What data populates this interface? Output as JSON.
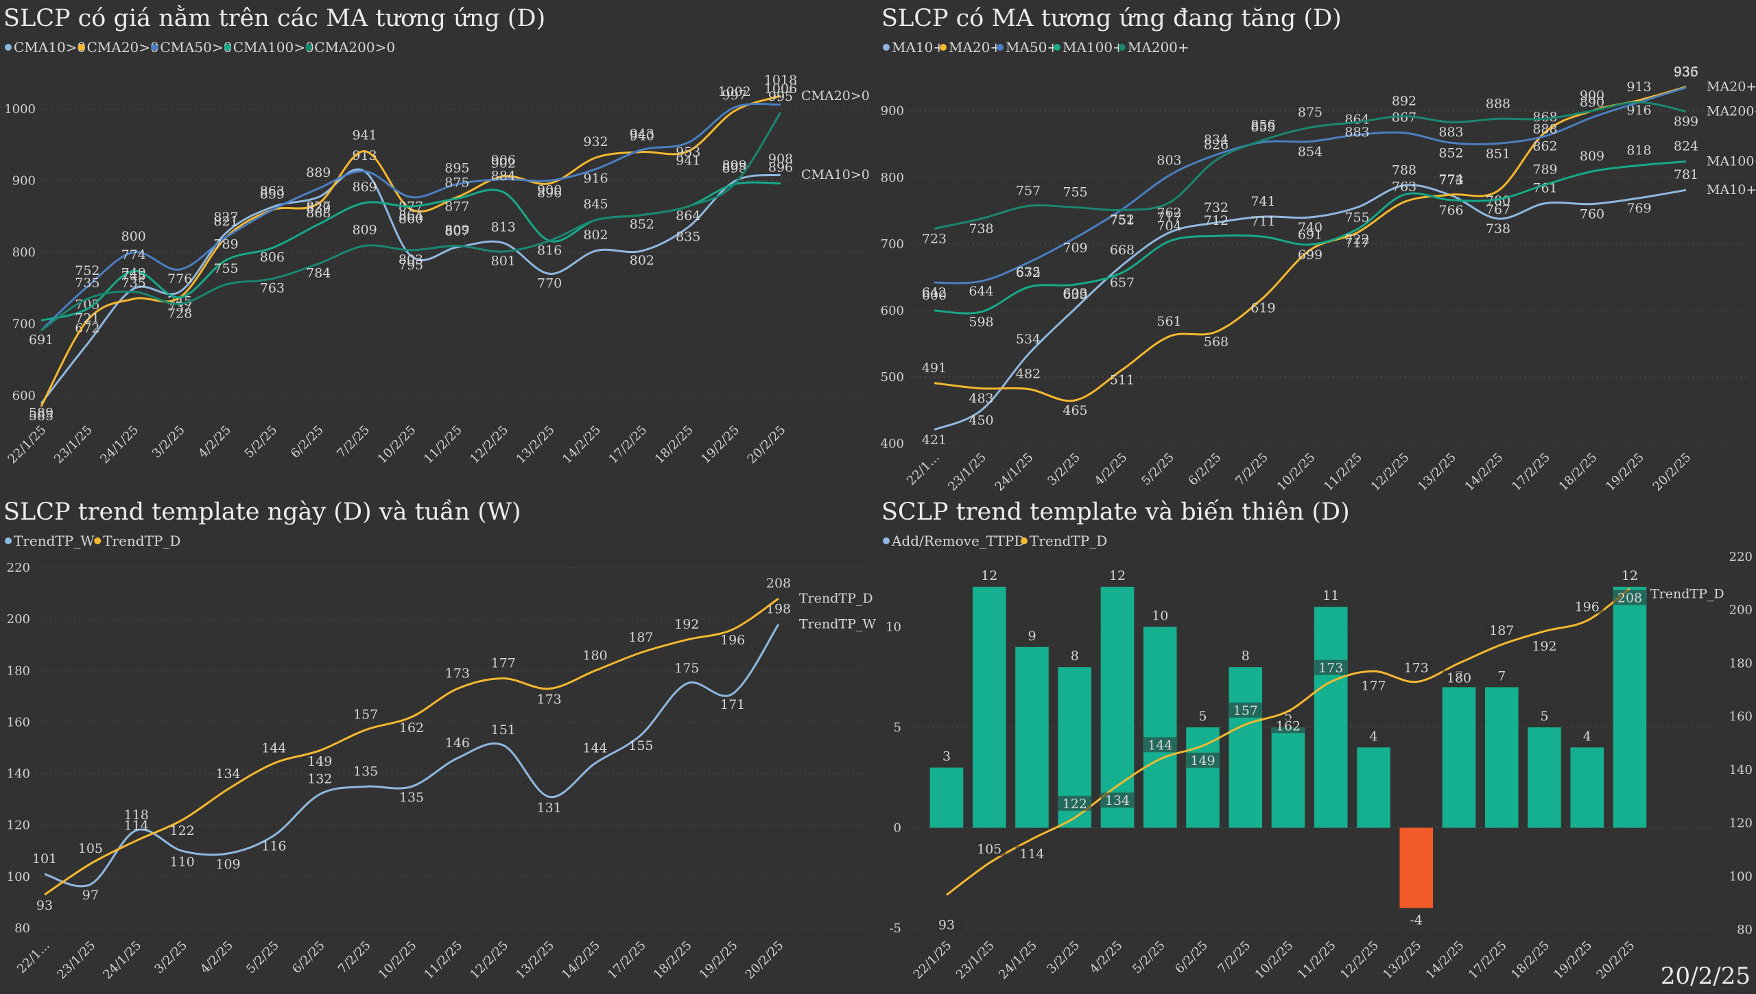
{
  "date_stamp": "20/2/25",
  "chart_data": [
    {
      "id": "tl",
      "type": "line",
      "title": "SLCP có giá nằm trên các MA tương ứng (D)",
      "categories": [
        "22/1/25",
        "23/1/25",
        "24/1/25",
        "3/2/25",
        "4/2/25",
        "5/2/25",
        "6/2/25",
        "7/2/25",
        "10/2/25",
        "11/2/25",
        "12/2/25",
        "13/2/25",
        "14/2/25",
        "17/2/25",
        "18/2/25",
        "19/2/25",
        "20/2/25"
      ],
      "ylim": [
        580,
        1020
      ],
      "yticks": [
        600,
        700,
        800,
        900,
        1000
      ],
      "grid": true,
      "legend_position": "top-left",
      "series": [
        {
          "name": "CMA10>0",
          "color": "#8fb8e0",
          "values": [
            589,
            672,
            749,
            745,
            827,
            863,
            877,
            913,
            795,
            807,
            813,
            770,
            802,
            802,
            835,
            899,
            908
          ],
          "labels": [
            589,
            672,
            749,
            745,
            827,
            863,
            877,
            913,
            795,
            807,
            813,
            770,
            802,
            802,
            835,
            899,
            908
          ],
          "end_label": "CMA10>0"
        },
        {
          "name": "CMA20>0",
          "color": "#f5b82e",
          "values": [
            585,
            705,
            735,
            737,
            821,
            859,
            868,
            941,
            860,
            877,
            906,
            896,
            932,
            940,
            941,
            997,
            1018
          ],
          "labels": [
            585,
            705,
            735,
            737,
            821,
            859,
            868,
            941,
            860,
            877,
            906,
            896,
            932,
            940,
            941,
            997,
            1018
          ],
          "end_label": "CMA20>0"
        },
        {
          "name": "CMA50>0",
          "color": "#4a7fc1",
          "values": [
            691,
            752,
            800,
            776,
            821,
            859,
            889,
            913,
            877,
            895,
            902,
            900,
            916,
            943,
            953,
            1002,
            1006
          ],
          "labels": [
            691,
            752,
            800,
            776,
            null,
            null,
            889,
            null,
            877,
            895,
            902,
            900,
            916,
            943,
            953,
            1002,
            1006
          ]
        },
        {
          "name": "CMA100>0",
          "color": "#16a98a",
          "values": [
            705,
            721,
            774,
            737,
            789,
            806,
            839,
            869,
            864,
            875,
            884,
            816,
            845,
            852,
            864,
            895,
            896
          ],
          "labels": [
            null,
            721,
            774,
            null,
            789,
            806,
            839,
            869,
            864,
            875,
            884,
            816,
            845,
            852,
            864,
            895,
            896
          ]
        },
        {
          "name": "CMA200>0",
          "color": "#198770",
          "values": [
            691,
            735,
            745,
            728,
            755,
            763,
            784,
            809,
            803,
            809,
            801,
            816,
            845,
            852,
            864,
            895,
            995
          ],
          "labels": [
            null,
            735,
            745,
            728,
            755,
            763,
            784,
            809,
            803,
            809,
            801,
            null,
            null,
            null,
            null,
            null,
            995
          ]
        }
      ]
    },
    {
      "id": "tr",
      "type": "line",
      "title": "SLCP có MA tương ứng đang tăng (D)",
      "categories": [
        "22/1...",
        "23/1/25",
        "24/1/25",
        "3/2/25",
        "4/2/25",
        "5/2/25",
        "6/2/25",
        "7/2/25",
        "10/2/25",
        "11/2/25",
        "12/2/25",
        "13/2/25",
        "14/2/25",
        "17/2/25",
        "18/2/25",
        "19/2/25",
        "20/2/25"
      ],
      "ylim": [
        395,
        945
      ],
      "yticks": [
        400,
        500,
        600,
        700,
        800,
        900
      ],
      "grid": true,
      "legend_position": "top-left",
      "series": [
        {
          "name": "MA10+",
          "color": "#8fb8e0",
          "values": [
            421,
            450,
            534,
            603,
            668,
            717,
            732,
            741,
            740,
            755,
            788,
            773,
            738,
            761,
            760,
            769,
            781
          ],
          "labels": [
            421,
            450,
            534,
            603,
            668,
            717,
            732,
            741,
            740,
            755,
            788,
            773,
            738,
            761,
            760,
            769,
            781
          ],
          "end_label": "MA10+"
        },
        {
          "name": "MA20+",
          "color": "#f5b82e",
          "values": [
            491,
            483,
            482,
            465,
            511,
            561,
            568,
            619,
            691,
            717,
            763,
            774,
            780,
            868,
            900,
            916,
            936
          ],
          "labels": [
            491,
            483,
            482,
            465,
            511,
            561,
            568,
            619,
            691,
            717,
            763,
            774,
            780,
            868,
            900,
            916,
            936
          ],
          "end_label": "MA20+"
        },
        {
          "name": "MA50+",
          "color": "#4a7fc1",
          "values": [
            642,
            644,
            672,
            709,
            752,
            803,
            834,
            853,
            854,
            864,
            867,
            852,
            851,
            862,
            890,
            913,
            935
          ],
          "labels": [
            642,
            644,
            672,
            709,
            752,
            803,
            834,
            853,
            854,
            864,
            867,
            852,
            851,
            862,
            890,
            913,
            935
          ]
        },
        {
          "name": "MA100+",
          "color": "#16a98a",
          "values": [
            600,
            598,
            635,
            639,
            657,
            704,
            712,
            711,
            699,
            722,
            774,
            766,
            767,
            789,
            809,
            818,
            824
          ],
          "labels": [
            600,
            598,
            635,
            639,
            657,
            704,
            712,
            711,
            699,
            722,
            null,
            766,
            767,
            789,
            809,
            818,
            824
          ],
          "end_label": "MA100+"
        },
        {
          "name": "MA200+",
          "color": "#198770",
          "values": [
            723,
            738,
            757,
            755,
            751,
            762,
            826,
            856,
            875,
            883,
            892,
            883,
            888,
            888,
            900,
            913,
            899
          ],
          "labels": [
            723,
            738,
            757,
            755,
            751,
            762,
            826,
            856,
            875,
            883,
            892,
            883,
            888,
            888,
            null,
            null,
            899
          ],
          "end_label": "MA200+"
        }
      ]
    },
    {
      "id": "bl",
      "type": "line",
      "title": "SLCP trend template ngày (D) và tuần (W)",
      "categories": [
        "22/1...",
        "23/1/25",
        "24/1/25",
        "3/2/25",
        "4/2/25",
        "5/2/25",
        "6/2/25",
        "7/2/25",
        "10/2/25",
        "11/2/25",
        "12/2/25",
        "13/2/25",
        "14/2/25",
        "17/2/25",
        "18/2/25",
        "19/2/25",
        "20/2/25"
      ],
      "ylim": [
        80,
        220
      ],
      "yticks": [
        80,
        100,
        120,
        140,
        160,
        180,
        200,
        220
      ],
      "grid": true,
      "legend_position": "top-left",
      "series": [
        {
          "name": "TrendTP_W",
          "color": "#8fb8e0",
          "values": [
            101,
            97,
            118,
            110,
            109,
            116,
            132,
            135,
            135,
            146,
            151,
            131,
            144,
            155,
            175,
            171,
            198
          ],
          "labels": [
            101,
            97,
            118,
            110,
            109,
            116,
            132,
            135,
            135,
            146,
            151,
            131,
            144,
            155,
            175,
            171,
            198
          ],
          "end_label": "TrendTP_W"
        },
        {
          "name": "TrendTP_D",
          "color": "#f5b82e",
          "values": [
            93,
            105,
            114,
            122,
            134,
            144,
            149,
            157,
            162,
            173,
            177,
            173,
            180,
            187,
            192,
            196,
            208
          ],
          "labels": [
            93,
            105,
            114,
            122,
            134,
            144,
            149,
            157,
            162,
            173,
            177,
            173,
            180,
            187,
            192,
            196,
            208
          ],
          "end_label": "TrendTP_D"
        }
      ]
    },
    {
      "id": "br",
      "type": "bar",
      "title": "SCLP trend template và biến thiên (D)",
      "categories": [
        "22/1/25",
        "23/1/25",
        "24/1/25",
        "3/2/25",
        "4/2/25",
        "5/2/25",
        "6/2/25",
        "7/2/25",
        "10/2/25",
        "11/2/25",
        "12/2/25",
        "13/2/25",
        "14/2/25",
        "17/2/25",
        "18/2/25",
        "19/2/25",
        "20/2/25"
      ],
      "ylim": [
        -5,
        13.5
      ],
      "yticks": [
        -5,
        0,
        5,
        10
      ],
      "y2lim": [
        80,
        220
      ],
      "y2ticks": [
        80,
        100,
        120,
        140,
        160,
        180,
        200,
        220
      ],
      "grid": true,
      "legend_position": "top-left",
      "positive_color": "#14b090",
      "negative_color": "#f25a2a",
      "series": [
        {
          "name": "Add/Remove_TTPD",
          "color": "#8fb8e0",
          "axis": "left",
          "values": [
            3,
            12,
            9,
            8,
            12,
            10,
            5,
            8,
            5,
            11,
            4,
            -4,
            7,
            7,
            5,
            4,
            12
          ]
        },
        {
          "name": "TrendTP_D",
          "color": "#f5b82e",
          "axis": "right",
          "values": [
            93,
            105,
            114,
            122,
            134,
            144,
            149,
            157,
            162,
            173,
            177,
            173,
            180,
            187,
            192,
            196,
            208
          ],
          "end_label": "TrendTP_D"
        }
      ]
    }
  ]
}
